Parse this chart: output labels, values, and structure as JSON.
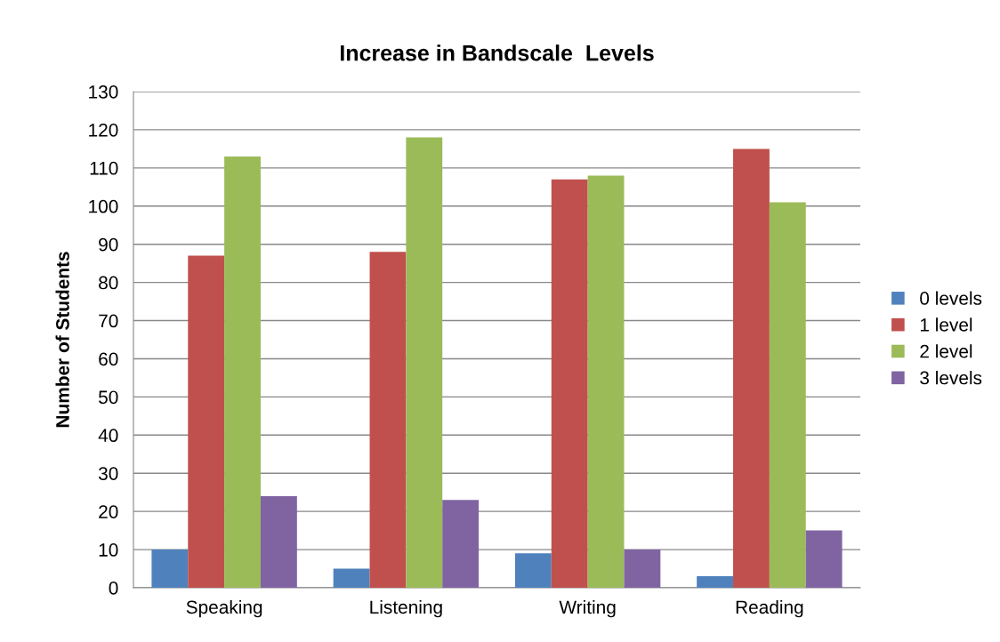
{
  "chart_data": {
    "type": "bar",
    "title": "Increase in Bandscale  Levels",
    "ylabel": "Number of Students",
    "categories": [
      "Speaking",
      "Listening",
      "Writing",
      "Reading"
    ],
    "series": [
      {
        "name": "0 levels",
        "color": "#4f81bd",
        "values": [
          10,
          5,
          9,
          3
        ]
      },
      {
        "name": "1 level",
        "color": "#c0504d",
        "values": [
          87,
          88,
          107,
          115
        ]
      },
      {
        "name": "2 level",
        "color": "#9bbb59",
        "values": [
          113,
          118,
          108,
          101
        ]
      },
      {
        "name": "3 levels",
        "color": "#8064a2",
        "values": [
          24,
          23,
          10,
          15
        ]
      }
    ],
    "ylim": [
      0,
      130
    ],
    "yticks": [
      0,
      10,
      20,
      30,
      40,
      50,
      60,
      70,
      80,
      90,
      100,
      110,
      120,
      130
    ],
    "grid": "y",
    "legend": "right"
  }
}
